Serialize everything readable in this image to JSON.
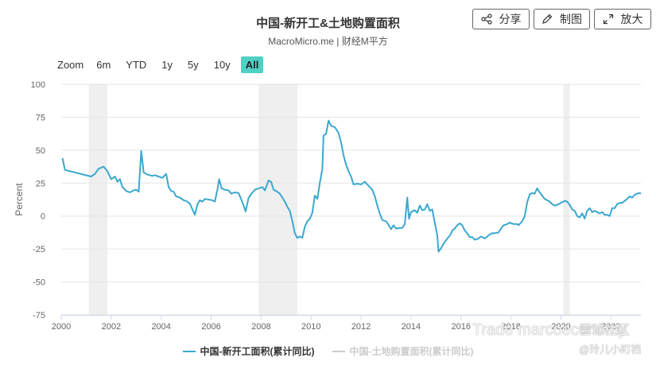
{
  "header": {
    "title": "中国-新开工&土地购置面积",
    "subtitle": "MacroMicro.me | 财经M平方",
    "share_label": "分享",
    "draw_label": "制图",
    "enlarge_label": "放大"
  },
  "zoom": {
    "label": "Zoom",
    "options": [
      "6m",
      "YTD",
      "1y",
      "5y",
      "10y",
      "All"
    ],
    "active": "All"
  },
  "watermark": {
    "line1": "Trade marcoeconomy",
    "brand": "雪球社区",
    "line2": "@玲儿小町裆"
  },
  "colors": {
    "series_main": "#3aa8cf",
    "series_hidden": "#cccccc",
    "recession_band": "#efefef",
    "active_zoom": "#4fd1c5"
  },
  "chart_data": {
    "type": "line",
    "title": "中国-新开工&土地购置面积",
    "ylabel": "Percent",
    "ylim": [
      -75,
      100
    ],
    "yticks": [
      100,
      75,
      50,
      25,
      0,
      -25,
      -50,
      -75
    ],
    "xlim": [
      2000,
      2023.2
    ],
    "xticks": [
      "2000",
      "2002",
      "2004",
      "2006",
      "2008",
      "2010",
      "2012",
      "2014",
      "2016",
      "2018",
      "2020",
      "2022"
    ],
    "grid": true,
    "legend_position": "bottom",
    "shaded_periods": [
      [
        2001.1,
        2001.85
      ],
      [
        2007.9,
        2009.45
      ],
      [
        2020.1,
        2020.35
      ]
    ],
    "series": [
      {
        "name": "中国-新开工面积(累计同比)",
        "visible": true,
        "points": [
          [
            2000.05,
            44
          ],
          [
            2000.15,
            35
          ],
          [
            2001.2,
            30
          ],
          [
            2001.35,
            32
          ],
          [
            2001.5,
            36
          ],
          [
            2001.7,
            37.5
          ],
          [
            2001.85,
            34
          ],
          [
            2002.0,
            28
          ],
          [
            2002.15,
            30
          ],
          [
            2002.25,
            26
          ],
          [
            2002.35,
            28
          ],
          [
            2002.45,
            22
          ],
          [
            2002.6,
            19
          ],
          [
            2002.75,
            18
          ],
          [
            2002.9,
            19.5
          ],
          [
            2003.0,
            20
          ],
          [
            2003.1,
            18.5
          ],
          [
            2003.2,
            49.5
          ],
          [
            2003.3,
            33
          ],
          [
            2003.45,
            31.5
          ],
          [
            2003.55,
            31
          ],
          [
            2003.65,
            30.5
          ],
          [
            2003.75,
            31
          ],
          [
            2003.9,
            30
          ],
          [
            2004.05,
            29
          ],
          [
            2004.15,
            31
          ],
          [
            2004.2,
            32
          ],
          [
            2004.3,
            22
          ],
          [
            2004.4,
            19
          ],
          [
            2004.5,
            18.5
          ],
          [
            2004.6,
            15
          ],
          [
            2004.75,
            14
          ],
          [
            2004.9,
            12
          ],
          [
            2005.0,
            11.5
          ],
          [
            2005.15,
            9.5
          ],
          [
            2005.25,
            5
          ],
          [
            2005.35,
            1
          ],
          [
            2005.45,
            9
          ],
          [
            2005.55,
            12
          ],
          [
            2005.65,
            11
          ],
          [
            2005.75,
            13
          ],
          [
            2005.9,
            12.5
          ],
          [
            2006.05,
            12
          ],
          [
            2006.15,
            11
          ],
          [
            2006.25,
            20
          ],
          [
            2006.32,
            28
          ],
          [
            2006.42,
            21
          ],
          [
            2006.55,
            20
          ],
          [
            2006.7,
            19.5
          ],
          [
            2006.8,
            17
          ],
          [
            2006.95,
            18
          ],
          [
            2007.1,
            17.5
          ],
          [
            2007.2,
            13
          ],
          [
            2007.3,
            8
          ],
          [
            2007.38,
            3.5
          ],
          [
            2007.5,
            14
          ],
          [
            2007.62,
            17
          ],
          [
            2007.75,
            20
          ],
          [
            2007.9,
            21
          ],
          [
            2008.05,
            22
          ],
          [
            2008.15,
            19.5
          ],
          [
            2008.3,
            27
          ],
          [
            2008.4,
            26
          ],
          [
            2008.5,
            20
          ],
          [
            2008.6,
            19
          ],
          [
            2008.75,
            17
          ],
          [
            2008.85,
            14
          ],
          [
            2008.95,
            11
          ],
          [
            2009.05,
            7
          ],
          [
            2009.15,
            4
          ],
          [
            2009.25,
            -4
          ],
          [
            2009.35,
            -13
          ],
          [
            2009.45,
            -16.5
          ],
          [
            2009.55,
            -15.5
          ],
          [
            2009.65,
            -16.5
          ],
          [
            2009.75,
            -8
          ],
          [
            2009.85,
            -4
          ],
          [
            2009.95,
            -2
          ],
          [
            2010.05,
            2.5
          ],
          [
            2010.15,
            15.5
          ],
          [
            2010.25,
            13
          ],
          [
            2010.35,
            25
          ],
          [
            2010.45,
            36
          ],
          [
            2010.5,
            61
          ],
          [
            2010.6,
            62.5
          ],
          [
            2010.7,
            72.5
          ],
          [
            2010.8,
            68.5
          ],
          [
            2010.95,
            67.5
          ],
          [
            2011.1,
            63
          ],
          [
            2011.2,
            56
          ],
          [
            2011.3,
            46
          ],
          [
            2011.4,
            39
          ],
          [
            2011.5,
            34
          ],
          [
            2011.6,
            30
          ],
          [
            2011.7,
            24
          ],
          [
            2011.85,
            24.5
          ],
          [
            2012.0,
            24
          ],
          [
            2012.15,
            26
          ],
          [
            2012.3,
            23
          ],
          [
            2012.45,
            20
          ],
          [
            2012.55,
            15
          ],
          [
            2012.65,
            8
          ],
          [
            2012.75,
            2
          ],
          [
            2012.85,
            -3
          ],
          [
            2013.0,
            -4
          ],
          [
            2013.1,
            -6.5
          ],
          [
            2013.2,
            -10
          ],
          [
            2013.3,
            -7
          ],
          [
            2013.4,
            -9.5
          ],
          [
            2013.55,
            -9
          ],
          [
            2013.65,
            -9
          ],
          [
            2013.75,
            -6
          ],
          [
            2013.85,
            14
          ],
          [
            2013.92,
            -2
          ],
          [
            2014.0,
            3
          ],
          [
            2014.15,
            4.5
          ],
          [
            2014.25,
            2.5
          ],
          [
            2014.35,
            8
          ],
          [
            2014.45,
            4.5
          ],
          [
            2014.55,
            5
          ],
          [
            2014.65,
            9
          ],
          [
            2014.75,
            4
          ],
          [
            2014.85,
            5
          ],
          [
            2014.95,
            -5
          ],
          [
            2015.05,
            -14.5
          ],
          [
            2015.1,
            -27
          ],
          [
            2015.2,
            -24.5
          ],
          [
            2015.3,
            -21
          ],
          [
            2015.45,
            -17
          ],
          [
            2015.55,
            -15
          ],
          [
            2015.65,
            -11
          ],
          [
            2015.75,
            -9.5
          ],
          [
            2015.85,
            -7
          ],
          [
            2015.95,
            -5.5
          ],
          [
            2016.05,
            -7
          ],
          [
            2016.15,
            -11
          ],
          [
            2016.25,
            -13
          ],
          [
            2016.35,
            -16
          ],
          [
            2016.45,
            -16
          ],
          [
            2016.55,
            -18
          ],
          [
            2016.7,
            -17
          ],
          [
            2016.8,
            -15.5
          ],
          [
            2016.95,
            -17
          ],
          [
            2017.05,
            -15.5
          ],
          [
            2017.15,
            -14
          ],
          [
            2017.25,
            -13
          ],
          [
            2017.35,
            -13
          ],
          [
            2017.5,
            -12.5
          ],
          [
            2017.55,
            -11
          ],
          [
            2017.6,
            -9.5
          ],
          [
            2017.7,
            -7
          ],
          [
            2017.8,
            -6.5
          ],
          [
            2017.95,
            -5
          ],
          [
            2018.1,
            -6
          ],
          [
            2018.25,
            -6
          ],
          [
            2018.3,
            -7
          ],
          [
            2018.45,
            -4
          ],
          [
            2018.55,
            0
          ],
          [
            2018.65,
            10.5
          ],
          [
            2018.75,
            16.5
          ],
          [
            2018.85,
            17.5
          ],
          [
            2018.95,
            17
          ],
          [
            2019.05,
            21
          ],
          [
            2019.15,
            18
          ],
          [
            2019.25,
            15.5
          ],
          [
            2019.35,
            13
          ],
          [
            2019.45,
            12
          ],
          [
            2019.55,
            11
          ],
          [
            2019.65,
            9
          ],
          [
            2019.75,
            8
          ],
          [
            2019.85,
            8.5
          ],
          [
            2019.95,
            9.5
          ],
          [
            2020.05,
            10.5
          ],
          [
            2020.15,
            11.5
          ],
          [
            2020.25,
            11
          ],
          [
            2020.35,
            8.5
          ],
          [
            2020.45,
            5
          ],
          [
            2020.55,
            4
          ],
          [
            2020.65,
            0
          ],
          [
            2020.75,
            -1
          ],
          [
            2020.85,
            2
          ],
          [
            2020.95,
            -2
          ],
          [
            2021.05,
            4
          ],
          [
            2021.15,
            6
          ],
          [
            2021.25,
            3
          ],
          [
            2021.35,
            4
          ],
          [
            2021.45,
            3
          ],
          [
            2021.55,
            2
          ],
          [
            2021.65,
            3
          ],
          [
            2021.75,
            1
          ],
          [
            2021.85,
            1
          ],
          [
            2021.95,
            0
          ],
          [
            2022.05,
            6
          ],
          [
            2022.15,
            6
          ],
          [
            2022.25,
            9
          ],
          [
            2022.35,
            10
          ],
          [
            2022.45,
            10
          ],
          [
            2022.55,
            11.5
          ],
          [
            2022.65,
            13
          ],
          [
            2022.75,
            15
          ],
          [
            2022.85,
            14
          ],
          [
            2022.95,
            16
          ],
          [
            2023.05,
            17
          ],
          [
            2023.15,
            17.5
          ],
          [
            2023.2,
            17
          ]
        ]
      },
      {
        "name": "中国-土地购置面积(累计同比)",
        "visible": false,
        "points": []
      }
    ]
  }
}
